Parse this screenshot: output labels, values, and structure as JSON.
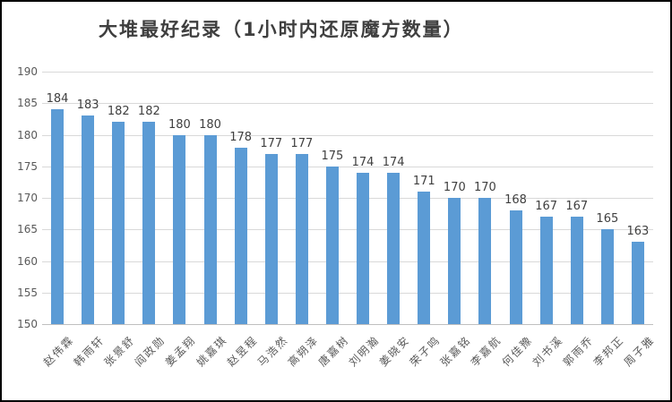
{
  "chart_data": {
    "type": "bar",
    "title": "大堆最好纪录（1小时内还原魔方数量）",
    "categories": [
      "赵伟霖",
      "韩雨轩",
      "张景舒",
      "阎政勋",
      "姜孟翔",
      "姚嘉琪",
      "赵昱程",
      "马浩然",
      "高朔泽",
      "唐嘉树",
      "刘明瀚",
      "姜晓安",
      "荣子鸣",
      "张嘉铭",
      "李嘉航",
      "何佳豫",
      "刘书溪",
      "郭雨乔",
      "李邦正",
      "周子雅"
    ],
    "values": [
      184,
      183,
      182,
      182,
      180,
      180,
      178,
      177,
      177,
      175,
      174,
      174,
      171,
      170,
      170,
      168,
      167,
      167,
      165,
      163
    ],
    "xlabel": "",
    "ylabel": "",
    "ylim": [
      150,
      190
    ],
    "yticks": [
      150,
      155,
      160,
      165,
      170,
      175,
      180,
      185,
      190
    ],
    "grid": true,
    "legend": "none",
    "data_labels": true,
    "colors": {
      "bar": "#5B9BD5",
      "gridline": "#D9D9D9",
      "axis_line": "#BFBFBF",
      "tick_label": "#595959",
      "data_label": "#3F3F3F",
      "title": "#3F3F3F",
      "background": "#FFFFFF",
      "frame_border": "#000000"
    }
  }
}
